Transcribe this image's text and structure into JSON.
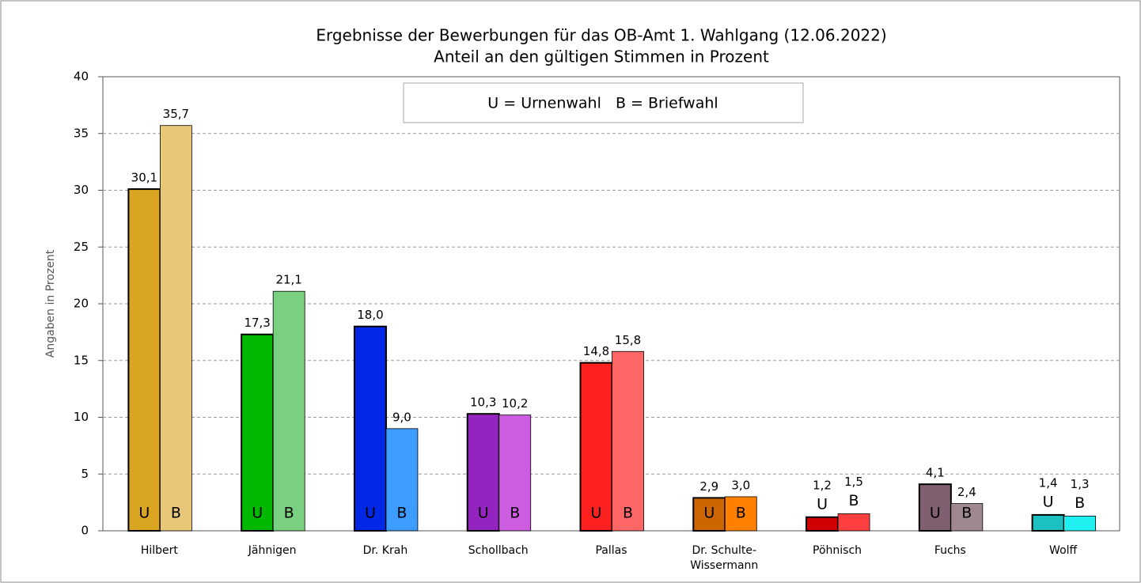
{
  "chart_data": {
    "type": "bar",
    "title": "Ergebnisse der Bewerbungen für das OB-Amt 1. Wahlgang (12.06.2022)",
    "subtitle": "Anteil an den gültigen Stimmen in Prozent",
    "y_label": "Angaben in Prozent",
    "annotation": "U = Urnenwahl   B = Briefwahl",
    "categories": [
      "Hilbert",
      "Jähnigen",
      "Dr. Krah",
      "Schollbach",
      "Pallas",
      "Dr. Schulte-Wissermann",
      "Pöhnisch",
      "Fuchs",
      "Wolff"
    ],
    "series": [
      {
        "name": "U",
        "colors": [
          "#daa520",
          "#00b800",
          "#0028e6",
          "#9424c0",
          "#ff2020",
          "#cc6600",
          "#d00000",
          "#806070",
          "#1cc0c0"
        ],
        "values": [
          30.1,
          17.3,
          18.0,
          10.3,
          14.8,
          2.9,
          1.2,
          4.1,
          1.4
        ],
        "value_labels": [
          "30,1",
          "17,3",
          "18,0",
          "10,3",
          "14,8",
          "2,9",
          "1,2",
          "4,1",
          "1,4"
        ]
      },
      {
        "name": "B",
        "colors": [
          "#e8c878",
          "#78d080",
          "#3c9cff",
          "#cc5ce0",
          "#ff6666",
          "#ff8000",
          "#ff4040",
          "#a08890",
          "#20f0f0"
        ],
        "values": [
          35.7,
          21.1,
          9.0,
          10.2,
          15.8,
          3.0,
          1.5,
          2.4,
          1.3
        ],
        "value_labels": [
          "35,7",
          "21,1",
          "9,0",
          "10,2",
          "15,8",
          "3,0",
          "1,5",
          "2,4",
          "1,3"
        ]
      }
    ],
    "ylim": [
      0,
      40
    ],
    "yticks": [
      0,
      5,
      10,
      15,
      20,
      25,
      30,
      35,
      40
    ],
    "grid": true
  }
}
